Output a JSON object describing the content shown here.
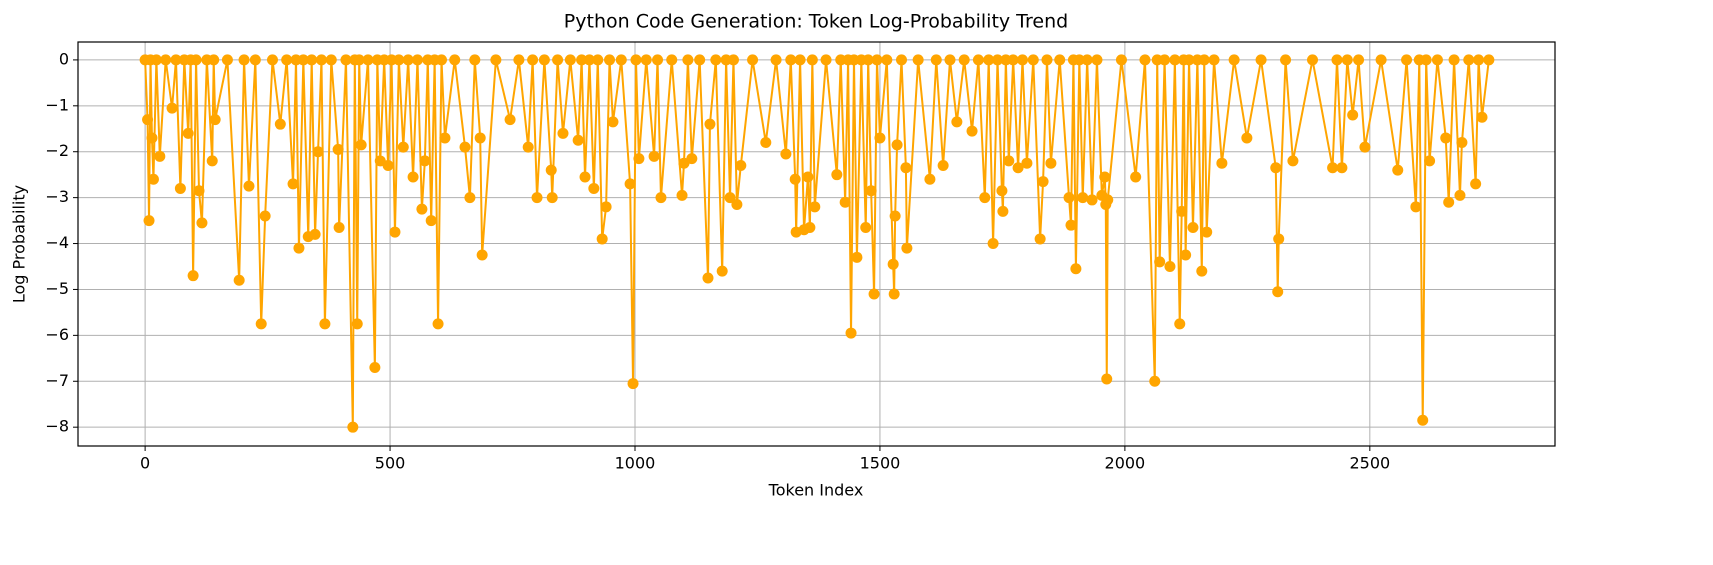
{
  "chart_data": {
    "type": "line",
    "title": "Python Code Generation: Token Log-Probability Trend",
    "x_label": "Token Index",
    "y_label": "Log Probability",
    "xlim": [
      -137,
      2878
    ],
    "ylim": [
      -8.41,
      0.39
    ],
    "xticks": [
      0,
      500,
      1000,
      1500,
      2000,
      2500
    ],
    "yticks": [
      {
        "value": -8,
        "label": "−8"
      },
      {
        "value": -7,
        "label": "−7"
      },
      {
        "value": -6,
        "label": "−6"
      },
      {
        "value": -5,
        "label": "−5"
      },
      {
        "value": -4,
        "label": "−4"
      },
      {
        "value": -3,
        "label": "−3"
      },
      {
        "value": -2,
        "label": "−2"
      },
      {
        "value": -1,
        "label": "−1"
      },
      0
    ],
    "grid": true,
    "series": [
      {
        "color": "#ffa500",
        "x": [
          0,
          5,
          8,
          11,
          14,
          17,
          23,
          30,
          42,
          55,
          63,
          72,
          80,
          88,
          93,
          98,
          104,
          110,
          116,
          126,
          137,
          140,
          143,
          168,
          192,
          202,
          212,
          225,
          237,
          245,
          260,
          276,
          289,
          302,
          308,
          314,
          323,
          333,
          340,
          347,
          353,
          360,
          367,
          380,
          394,
          396,
          410,
          424,
          428,
          433,
          437,
          441,
          455,
          469,
          474,
          480,
          488,
          496,
          503,
          510,
          518,
          527,
          537,
          547,
          556,
          565,
          571,
          577,
          584,
          591,
          598,
          605,
          612,
          632,
          653,
          663,
          673,
          684,
          688,
          716,
          745,
          763,
          782,
          791,
          800,
          815,
          829,
          831,
          842,
          853,
          868,
          884,
          891,
          898,
          907,
          916,
          924,
          933,
          941,
          948,
          955,
          972,
          990,
          996,
          1002,
          1008,
          1023,
          1039,
          1046,
          1053,
          1075,
          1096,
          1100,
          1108,
          1116,
          1132,
          1149,
          1153,
          1165,
          1178,
          1186,
          1194,
          1201,
          1208,
          1216,
          1240,
          1267,
          1288,
          1308,
          1318,
          1327,
          1329,
          1337,
          1345,
          1353,
          1357,
          1362,
          1367,
          1390,
          1412,
          1420,
          1429,
          1435,
          1441,
          1447,
          1453,
          1462,
          1471,
          1476,
          1482,
          1488,
          1494,
          1500,
          1514,
          1527,
          1529,
          1531,
          1535,
          1544,
          1553,
          1555,
          1578,
          1602,
          1615,
          1629,
          1643,
          1657,
          1672,
          1688,
          1701,
          1714,
          1722,
          1731,
          1740,
          1749,
          1751,
          1757,
          1763,
          1772,
          1782,
          1791,
          1800,
          1813,
          1827,
          1833,
          1841,
          1849,
          1867,
          1886,
          1890,
          1895,
          1900,
          1907,
          1914,
          1923,
          1933,
          1943,
          1953,
          1959,
          1961,
          1963,
          1965,
          1993,
          2022,
          2041,
          2061,
          2066,
          2071,
          2081,
          2092,
          2102,
          2112,
          2116,
          2120,
          2124,
          2131,
          2139,
          2148,
          2157,
          2162,
          2167,
          2182,
          2198,
          2223,
          2249,
          2278,
          2308,
          2312,
          2314,
          2328,
          2343,
          2383,
          2424,
          2433,
          2443,
          2454,
          2465,
          2477,
          2490,
          2523,
          2557,
          2575,
          2594,
          2601,
          2608,
          2615,
          2622,
          2638,
          2655,
          2661,
          2672,
          2684,
          2688,
          2702,
          2716,
          2722,
          2729,
          2743
        ],
        "values": [
          0,
          -1.3,
          -3.5,
          0,
          -1.7,
          -2.6,
          0,
          -2.1,
          0,
          -1.05,
          0,
          -2.8,
          0,
          -1.6,
          0,
          -4.7,
          0,
          -2.85,
          -3.55,
          0,
          -2.2,
          0,
          -1.3,
          0,
          -4.8,
          0,
          -2.75,
          0,
          -5.75,
          -3.4,
          0,
          -1.4,
          0,
          -2.7,
          0,
          -4.1,
          0,
          -3.85,
          0,
          -3.8,
          -2.0,
          0,
          -5.75,
          0,
          -1.95,
          -3.65,
          0,
          -8.0,
          0,
          -5.75,
          0,
          -1.85,
          0,
          -6.7,
          0,
          -2.2,
          0,
          -2.3,
          0,
          -3.75,
          0,
          -1.9,
          0,
          -2.55,
          0,
          -3.25,
          -2.2,
          0,
          -3.5,
          0,
          -5.75,
          0,
          -1.7,
          0,
          -1.9,
          -3.0,
          0,
          -1.7,
          -4.25,
          0,
          -1.3,
          0,
          -1.9,
          0,
          -3.0,
          0,
          -2.4,
          -3.0,
          0,
          -1.6,
          0,
          -1.75,
          0,
          -2.55,
          0,
          -2.8,
          0,
          -3.9,
          -3.2,
          0,
          -1.35,
          0,
          -2.7,
          -7.05,
          0,
          -2.15,
          0,
          -2.1,
          0,
          -3.0,
          0,
          -2.95,
          -2.25,
          0,
          -2.15,
          0,
          -4.75,
          -1.4,
          0,
          -4.6,
          0,
          -3.0,
          0,
          -3.15,
          -2.3,
          0,
          -1.8,
          0,
          -2.05,
          0,
          -2.6,
          -3.75,
          0,
          -3.7,
          -2.55,
          -3.65,
          0,
          -3.2,
          0,
          -2.5,
          0,
          -3.1,
          0,
          -5.95,
          0,
          -4.3,
          0,
          -3.65,
          0,
          -2.85,
          -5.1,
          0,
          -1.7,
          0,
          -4.45,
          -5.1,
          -3.4,
          -1.85,
          0,
          -2.35,
          -4.1,
          0,
          -2.6,
          0,
          -2.3,
          0,
          -1.35,
          0,
          -1.55,
          0,
          -3.0,
          0,
          -4.0,
          0,
          -2.85,
          -3.3,
          0,
          -2.2,
          0,
          -2.35,
          0,
          -2.25,
          0,
          -3.9,
          -2.65,
          0,
          -2.25,
          0,
          -3.0,
          -3.6,
          0,
          -4.55,
          0,
          -3.0,
          0,
          -3.05,
          0,
          -2.95,
          -2.55,
          -3.15,
          -6.95,
          -3.05,
          0,
          -2.55,
          0,
          -7.0,
          0,
          -4.4,
          0,
          -4.5,
          0,
          -5.75,
          -3.3,
          0,
          -4.25,
          0,
          -3.65,
          0,
          -4.6,
          0,
          -3.75,
          0,
          -2.25,
          0,
          -1.7,
          0,
          -2.35,
          -5.05,
          -3.9,
          0,
          -2.2,
          0,
          -2.35,
          0,
          -2.35,
          0,
          -1.2,
          0,
          -1.9,
          0,
          -2.4,
          0,
          -3.2,
          0,
          -7.85,
          0,
          -2.2,
          0,
          -1.7,
          -3.1,
          0,
          -2.95,
          -1.8,
          0,
          -2.7,
          0,
          -1.25,
          0
        ]
      }
    ]
  }
}
